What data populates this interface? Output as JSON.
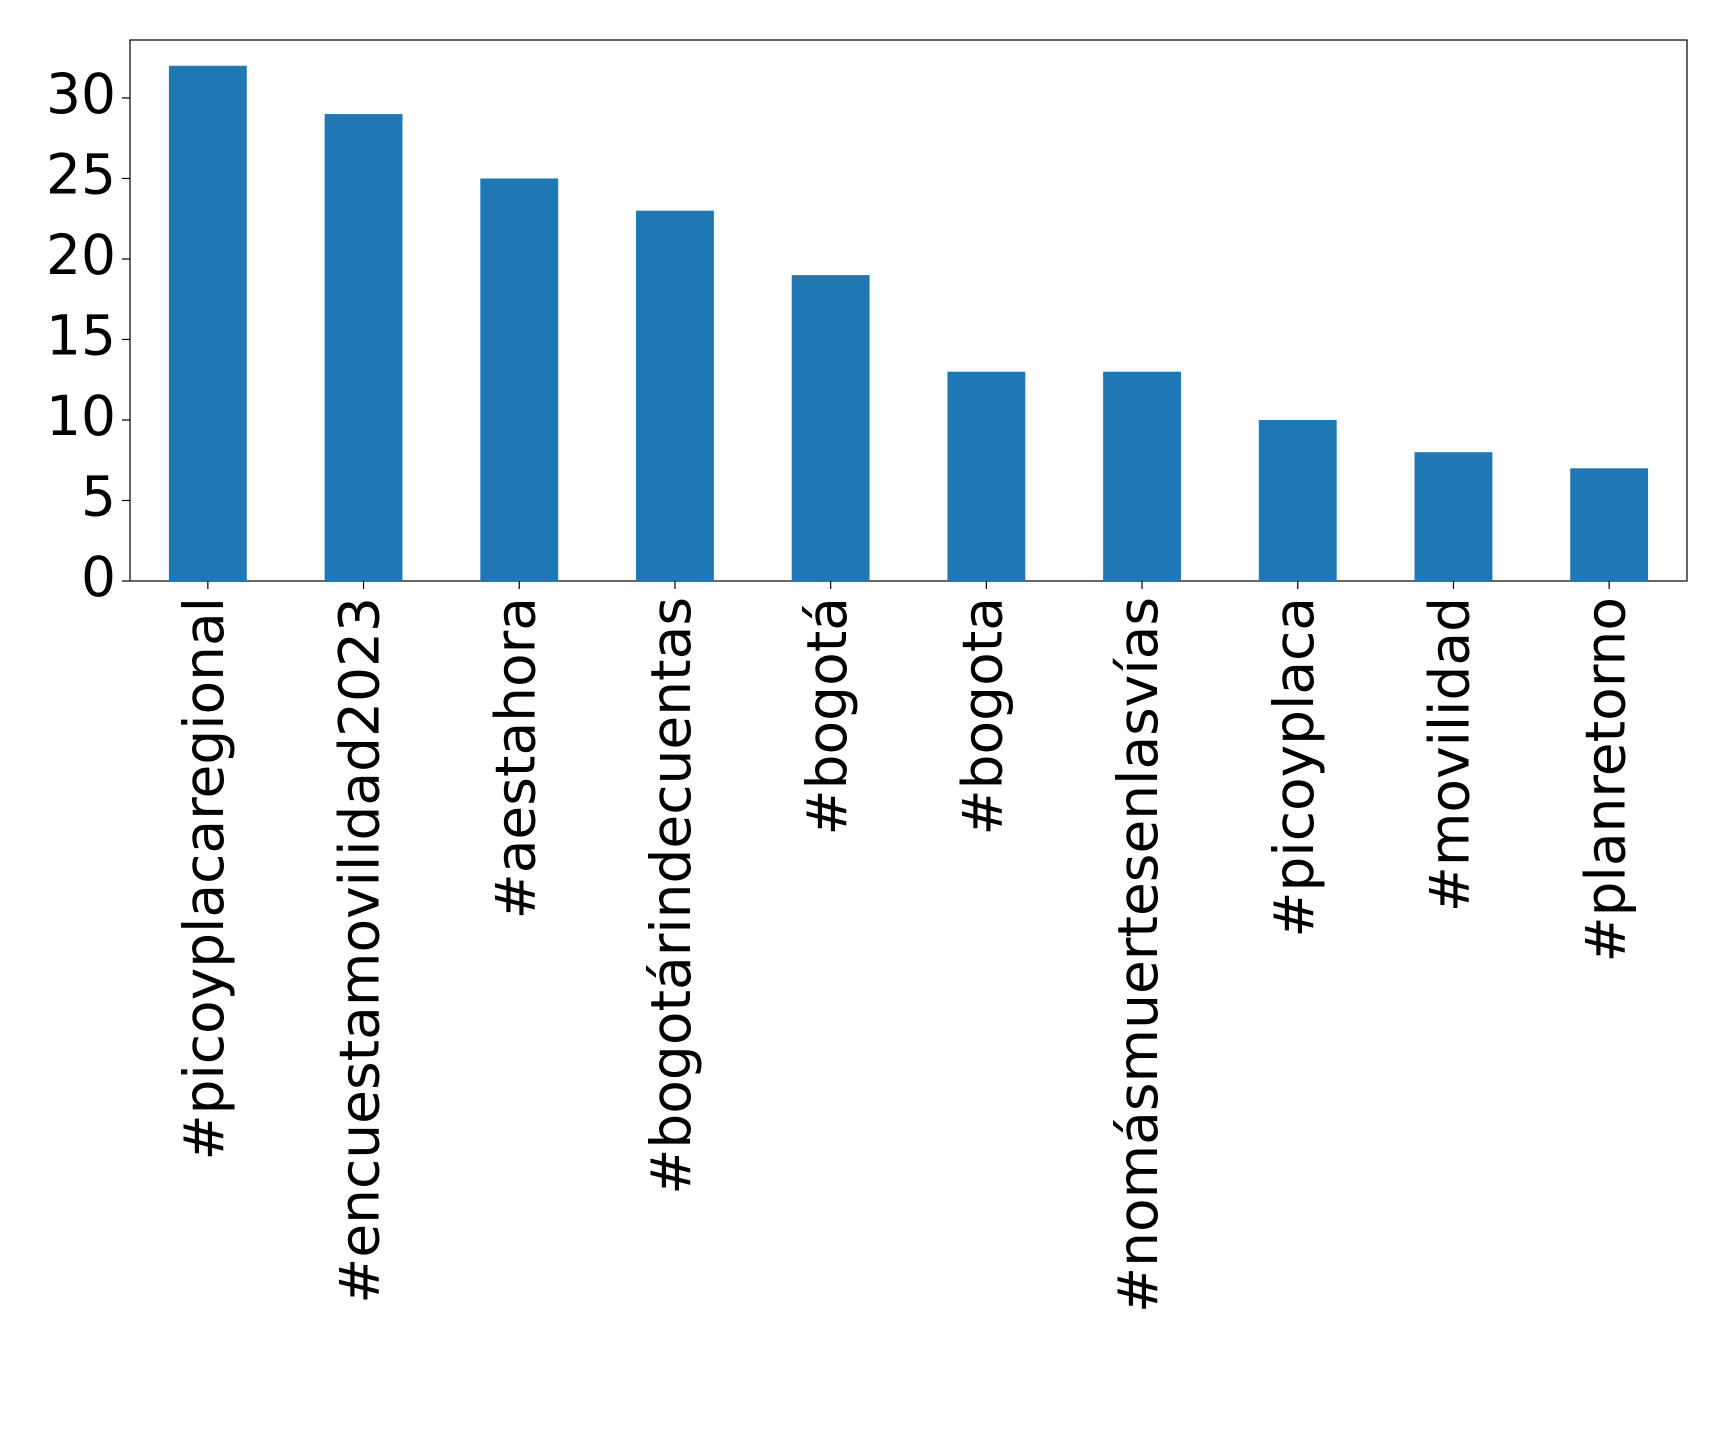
{
  "chart_data": {
    "type": "bar",
    "categories": [
      "#picoyplacaregional",
      "#encuestamovilidad2023",
      "#aestahora",
      "#bogotárindecuentas",
      "#bogotá",
      "#bogota",
      "#nomásmuertesenlasvías",
      "#picoyplaca",
      "#movilidad",
      "#planretorno"
    ],
    "values": [
      32,
      29,
      25,
      23,
      19,
      13,
      13,
      10,
      8,
      7
    ],
    "color": "#1f77b4",
    "ylim": [
      0,
      33.6
    ],
    "yticks": [
      0,
      5,
      10,
      15,
      20,
      25,
      30
    ],
    "grid": false
  }
}
